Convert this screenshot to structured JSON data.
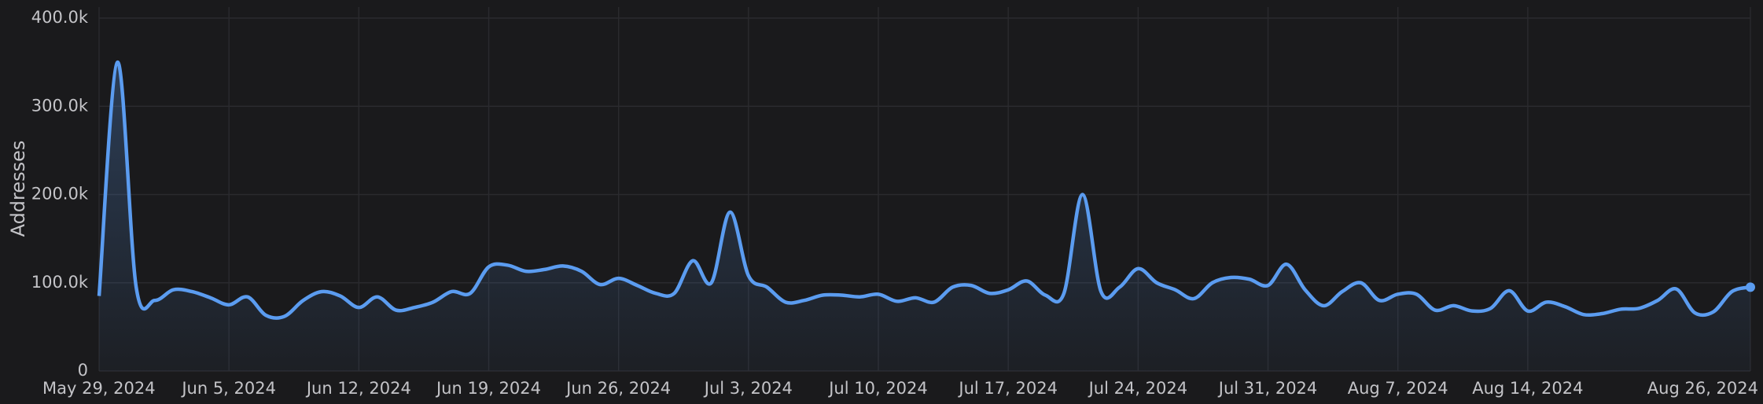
{
  "chart_data": {
    "type": "line",
    "y_label": "Addresses",
    "categories": [
      "May 29, 2024",
      null,
      null,
      null,
      null,
      null,
      null,
      "Jun 5, 2024",
      null,
      null,
      null,
      null,
      null,
      null,
      "Jun 12, 2024",
      null,
      null,
      null,
      null,
      null,
      null,
      "Jun 19, 2024",
      null,
      null,
      null,
      null,
      null,
      null,
      "Jun 26, 2024",
      null,
      null,
      null,
      null,
      null,
      null,
      "Jul 3, 2024",
      null,
      null,
      null,
      null,
      null,
      null,
      "Jul 10, 2024",
      null,
      null,
      null,
      null,
      null,
      null,
      "Jul 17, 2024",
      null,
      null,
      null,
      null,
      null,
      null,
      "Jul 24, 2024",
      null,
      null,
      null,
      null,
      null,
      null,
      "Jul 31, 2024",
      null,
      null,
      null,
      null,
      null,
      null,
      "Aug 7, 2024",
      null,
      null,
      null,
      null,
      null,
      null,
      "Aug 14, 2024",
      null,
      null,
      null,
      null,
      null,
      null,
      null,
      null,
      null,
      null,
      null,
      "Aug 26, 2024"
    ],
    "series": [
      {
        "name": "Addresses",
        "color": "#5b9cf0",
        "values": [
          85000,
          350000,
          95000,
          80000,
          92000,
          90000,
          83000,
          75000,
          84000,
          63000,
          62000,
          80000,
          90000,
          85000,
          72000,
          84000,
          69000,
          72000,
          78000,
          90000,
          88000,
          118000,
          120000,
          113000,
          115000,
          119000,
          113000,
          98000,
          105000,
          97000,
          88000,
          88000,
          125000,
          100000,
          180000,
          108000,
          95000,
          78000,
          80000,
          86000,
          86000,
          84000,
          87000,
          79000,
          83000,
          78000,
          95000,
          97000,
          88000,
          92000,
          102000,
          86000,
          88000,
          200000,
          90000,
          95000,
          116000,
          100000,
          92000,
          82000,
          100000,
          106000,
          104000,
          97000,
          121000,
          92000,
          74000,
          90000,
          100000,
          80000,
          87000,
          87000,
          69000,
          74000,
          68000,
          71000,
          91000,
          68000,
          78000,
          73000,
          64000,
          65000,
          70000,
          71000,
          80000,
          93000,
          66000,
          67000,
          90000,
          95000
        ]
      }
    ],
    "ylim": [
      0,
      400000
    ],
    "yticks": [
      0,
      {
        "value": 100000,
        "label": "100.0k"
      },
      {
        "value": 200000,
        "label": "200.0k"
      },
      {
        "value": 300000,
        "label": "300.0k"
      },
      {
        "value": 400000,
        "label": "400.0k"
      }
    ],
    "grid": true
  }
}
